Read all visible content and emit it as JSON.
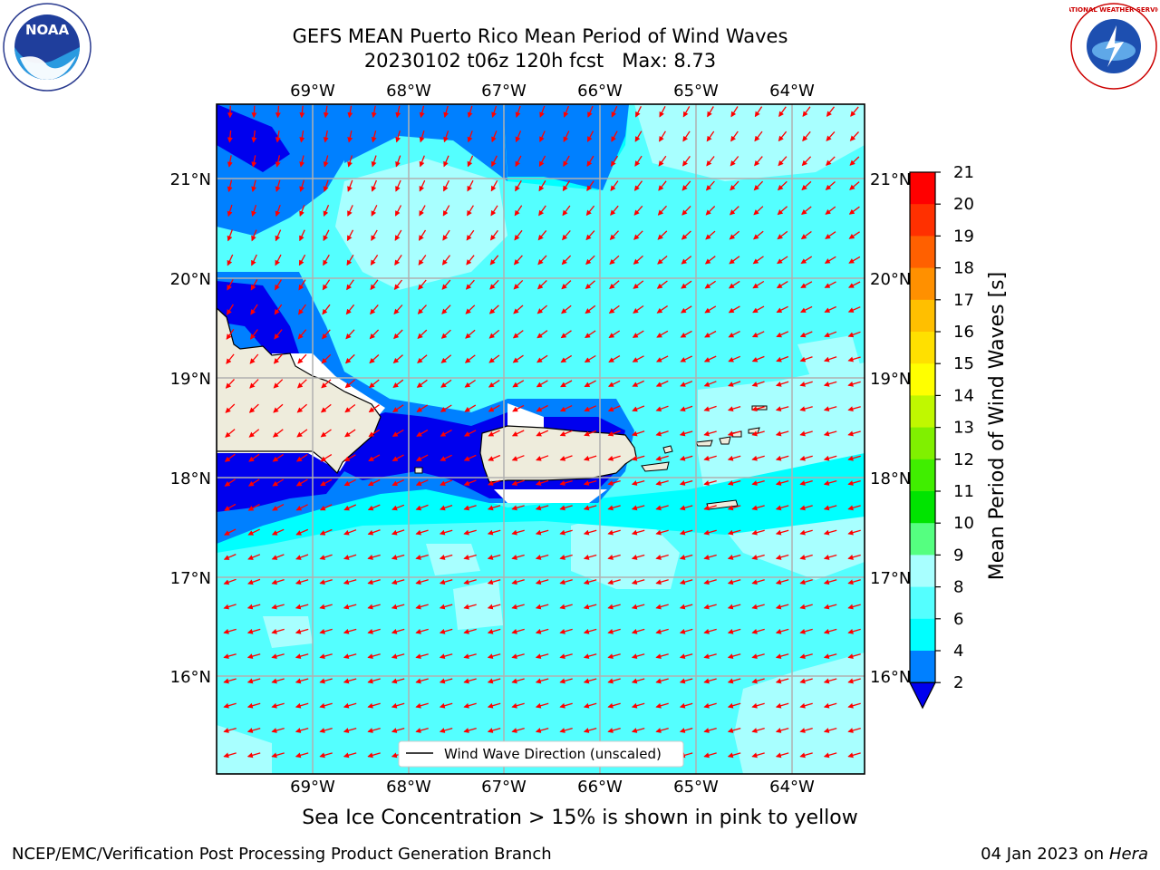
{
  "title": {
    "line1": "GEFS MEAN Puerto Rico Mean Period of Wind Waves",
    "line2": "20230102 t06z 120h fcst   Max: 8.73"
  },
  "map": {
    "lon_labels": [
      "69°W",
      "68°W",
      "67°W",
      "66°W",
      "65°W",
      "64°W"
    ],
    "lat_labels": [
      "21°N",
      "20°N",
      "19°N",
      "18°N",
      "17°N",
      "16°N"
    ],
    "legend_label": "Wind Wave Direction (unscaled)",
    "land_color": "#eeecdc",
    "arrow_color": "#ff0000"
  },
  "colorbar": {
    "label": "Mean Period of Wind Waves [s]",
    "ticks": [
      "2",
      "4",
      "6",
      "8",
      "9",
      "10",
      "11",
      "12",
      "13",
      "14",
      "15",
      "16",
      "17",
      "18",
      "19",
      "20",
      "21"
    ],
    "colors": [
      "#0000ee",
      "#0080ff",
      "#00ffff",
      "#54ffff",
      "#a8ffff",
      "#55ff80",
      "#00e400",
      "#40ee00",
      "#80f000",
      "#c0f800",
      "#ffff00",
      "#ffe000",
      "#ffbf00",
      "#ff9000",
      "#ff6000",
      "#ff3000",
      "#ff0000"
    ]
  },
  "ice_note": "Sea Ice Concentration > 15% is shown in pink to yellow",
  "footer": {
    "left": "NCEP/EMC/Verification Post Processing Product Generation Branch",
    "right_prefix": "04 Jan 2023 on ",
    "right_host": "Hera"
  },
  "logos": {
    "noaa_text": "NOAA",
    "nws_text": "NATIONAL WEATHER SERVICE"
  }
}
